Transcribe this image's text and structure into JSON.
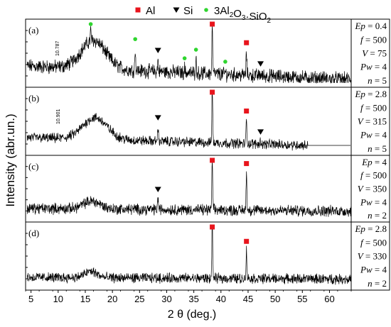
{
  "chart_data": {
    "type": "line",
    "xlabel": "2 θ (deg.)",
    "ylabel": "Intensity (abr.un.)",
    "xlim": [
      4,
      64
    ],
    "x_ticks": [
      5,
      10,
      15,
      20,
      25,
      30,
      35,
      40,
      45,
      50,
      55,
      60
    ],
    "legend": {
      "position": "top",
      "items": [
        {
          "label": "Al",
          "marker": "square",
          "color": "#e8141c"
        },
        {
          "label": "Si",
          "marker": "triangle-down",
          "color": "#000000"
        },
        {
          "label": "3Al",
          "sub1": "2",
          "mid": "O",
          "sub2": "3",
          "tail": "·SiO",
          "sub3": "2",
          "marker": "circle",
          "color": "#2fd52f"
        }
      ]
    },
    "panels": [
      {
        "label": "(a)",
        "params": [
          {
            "name": "Ep",
            "value": "0.4"
          },
          {
            "name": "f",
            "value": "500"
          },
          {
            "name": "V",
            "value": "75"
          },
          {
            "name": "Pw",
            "value": "4"
          },
          {
            "name": "n",
            "value": "5"
          }
        ],
        "annotation": {
          "text": "10.787",
          "x": 9.9
        },
        "hump": {
          "center": 16.5,
          "width": 3.2,
          "height": 0.5
        },
        "baseline_start": 0.3,
        "baseline_end": 0.06,
        "noise": 0.1,
        "peaks": [
          {
            "x": 16.0,
            "h": 0.18,
            "phase": "mullite"
          },
          {
            "x": 24.2,
            "h": 0.38,
            "phase": "mullite"
          },
          {
            "x": 28.4,
            "h": 0.2,
            "phase": "Si"
          },
          {
            "x": 33.3,
            "h": 0.08,
            "phase": "mullite"
          },
          {
            "x": 35.4,
            "h": 0.24,
            "phase": "mullite"
          },
          {
            "x": 38.4,
            "h": 0.82,
            "phase": "Al"
          },
          {
            "x": 40.8,
            "h": 0.05,
            "phase": "mullite"
          },
          {
            "x": 44.7,
            "h": 0.4,
            "phase": "Al"
          },
          {
            "x": 47.3,
            "h": 0.04,
            "phase": "Si"
          }
        ]
      },
      {
        "label": "(b)",
        "params": [
          {
            "name": "Ep",
            "value": "2.8"
          },
          {
            "name": "f",
            "value": "500"
          },
          {
            "name": "V",
            "value": "315"
          },
          {
            "name": "Pw",
            "value": "4"
          },
          {
            "name": "n",
            "value": "5"
          }
        ],
        "annotation": {
          "text": "10.901",
          "x": 10.0
        },
        "hump": {
          "center": 16.8,
          "width": 3.2,
          "height": 0.38
        },
        "baseline_start": 0.24,
        "baseline_end": 0.08,
        "noise": 0.07,
        "data_end": 56,
        "flat_level": 0.1,
        "peaks": [
          {
            "x": 28.4,
            "h": 0.26,
            "phase": "Si"
          },
          {
            "x": 38.4,
            "h": 0.98,
            "phase": "Al"
          },
          {
            "x": 44.7,
            "h": 0.42,
            "phase": "Al"
          },
          {
            "x": 47.3,
            "h": 0.06,
            "phase": "Si"
          }
        ]
      },
      {
        "label": "(c)",
        "params": [
          {
            "name": "Ep",
            "value": "4"
          },
          {
            "name": "f",
            "value": "500"
          },
          {
            "name": "V",
            "value": "350"
          },
          {
            "name": "Pw",
            "value": "4"
          },
          {
            "name": "n",
            "value": "2"
          }
        ],
        "hump": {
          "center": 16.2,
          "width": 2.2,
          "height": 0.14
        },
        "baseline_start": 0.17,
        "baseline_end": 0.12,
        "noise": 0.08,
        "peaks": [
          {
            "x": 28.4,
            "h": 0.2,
            "phase": "Si"
          },
          {
            "x": 38.4,
            "h": 0.98,
            "phase": "Al"
          },
          {
            "x": 44.7,
            "h": 0.68,
            "phase": "Al"
          }
        ]
      },
      {
        "label": "(d)",
        "params": [
          {
            "name": "Ep",
            "value": "2.8"
          },
          {
            "name": "f",
            "value": "500"
          },
          {
            "name": "V",
            "value": "330"
          },
          {
            "name": "Pw",
            "value": "4"
          },
          {
            "name": "n",
            "value": "2"
          }
        ],
        "hump": {
          "center": 16.0,
          "width": 1.6,
          "height": 0.11
        },
        "baseline_start": 0.15,
        "baseline_end": 0.12,
        "noise": 0.07,
        "peaks": [
          {
            "x": 38.4,
            "h": 0.98,
            "phase": "Al"
          },
          {
            "x": 44.7,
            "h": 0.5,
            "phase": "Al"
          }
        ]
      }
    ]
  }
}
